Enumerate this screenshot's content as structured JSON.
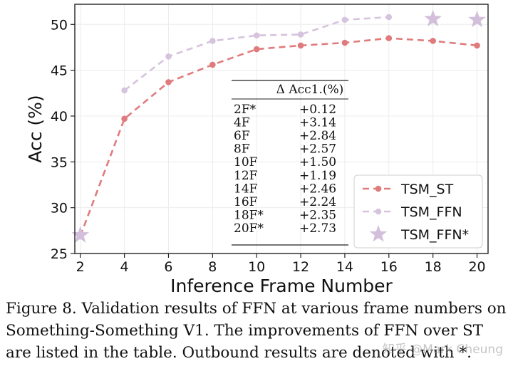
{
  "chart_data": {
    "type": "line",
    "xlabel": "Inference Frame Number",
    "ylabel": "Acc (%)",
    "xlim": [
      1.75,
      20.5
    ],
    "ylim": [
      25,
      52.2
    ],
    "xticks": [
      2,
      4,
      6,
      8,
      10,
      12,
      14,
      16,
      18,
      20
    ],
    "yticks": [
      25,
      30,
      35,
      40,
      45,
      50
    ],
    "grid": true,
    "legend_position": "bottom-right",
    "series": [
      {
        "name": "TSM_ST",
        "color": "#e07b7d",
        "style": "dashed",
        "marker": "circle",
        "x": [
          2,
          4,
          6,
          8,
          10,
          12,
          14,
          16,
          18,
          20
        ],
        "y": [
          26.9,
          39.7,
          43.7,
          45.6,
          47.3,
          47.7,
          48.0,
          48.5,
          48.2,
          47.7
        ]
      },
      {
        "name": "TSM_FFN",
        "color": "#d6c3dd",
        "style": "dashed",
        "marker": "circle",
        "x": [
          4,
          6,
          8,
          10,
          12,
          14,
          16
        ],
        "y": [
          42.8,
          46.5,
          48.2,
          48.8,
          48.9,
          50.5,
          50.8
        ]
      },
      {
        "name": "TSM_FFN*",
        "color": "#d3bfdb",
        "style": "none",
        "marker": "star",
        "x": [
          2,
          18,
          20
        ],
        "y": [
          27.0,
          50.6,
          50.5
        ]
      }
    ],
    "table": {
      "header": "Δ Acc1.(%)",
      "rows": [
        [
          "2F*",
          "+0.12"
        ],
        [
          "4F",
          "+3.14"
        ],
        [
          "6F",
          "+2.84"
        ],
        [
          "8F",
          "+2.57"
        ],
        [
          "10F",
          "+1.50"
        ],
        [
          "12F",
          "+1.19"
        ],
        [
          "14F",
          "+2.46"
        ],
        [
          "16F",
          "+2.24"
        ],
        [
          "18F*",
          "+2.35"
        ],
        [
          "20F*",
          "+2.73"
        ]
      ]
    }
  },
  "caption": "Figure 8. Validation results of FFN at various frame numbers on Something-Something V1. The improvements of FFN over ST are listed in the table. Outbound results are denoted with *.",
  "watermark": "知乎 @Mark Cheung"
}
